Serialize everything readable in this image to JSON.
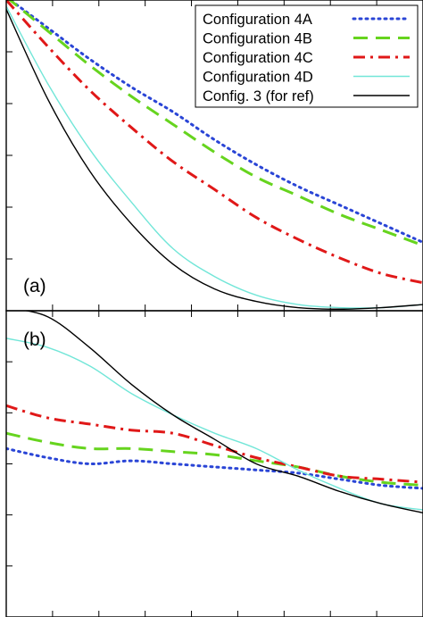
{
  "chart_data": [
    {
      "type": "line",
      "panel_label": "(a)",
      "xlim": [
        0,
        10
      ],
      "ylim": [
        0,
        1
      ],
      "grid": false,
      "legend": {
        "placement": "top-right",
        "entries": [
          "Configuration 4A",
          "Configuration 4B",
          "Configuration 4C",
          "Configuration 4D",
          "Config. 3 (for ref)"
        ]
      },
      "series": [
        {
          "name": "Configuration 4A",
          "color": "#2a45d6",
          "style": "dotted",
          "x": [
            0,
            1,
            2,
            3,
            4,
            5,
            6,
            7,
            8,
            9,
            10
          ],
          "y": [
            1.01,
            0.91,
            0.81,
            0.72,
            0.64,
            0.55,
            0.47,
            0.4,
            0.34,
            0.28,
            0.22
          ]
        },
        {
          "name": "Configuration 4B",
          "color": "#66d41e",
          "style": "dashed",
          "x": [
            0,
            1,
            2,
            3,
            4,
            5,
            6,
            7,
            8,
            9,
            10
          ],
          "y": [
            1.01,
            0.9,
            0.79,
            0.69,
            0.6,
            0.51,
            0.43,
            0.37,
            0.31,
            0.26,
            0.21
          ]
        },
        {
          "name": "Configuration 4C",
          "color": "#e01818",
          "style": "dash-dot",
          "x": [
            0,
            1,
            2,
            3,
            4,
            5,
            6,
            7,
            8,
            9,
            10
          ],
          "y": [
            1.0,
            0.85,
            0.71,
            0.59,
            0.48,
            0.39,
            0.3,
            0.23,
            0.17,
            0.12,
            0.09
          ]
        },
        {
          "name": "Configuration 4D",
          "color": "#72e6d8",
          "style": "solid",
          "x": [
            0,
            1,
            2,
            3,
            4,
            5,
            6,
            7,
            8,
            9,
            10
          ],
          "y": [
            0.98,
            0.73,
            0.52,
            0.35,
            0.2,
            0.11,
            0.05,
            0.02,
            0.01,
            0.01,
            0.02
          ]
        },
        {
          "name": "Config. 3 (for ref)",
          "color": "#000000",
          "style": "solid",
          "x": [
            0,
            1,
            2,
            3,
            4,
            5,
            6,
            7,
            8,
            9,
            10
          ],
          "y": [
            0.97,
            0.68,
            0.45,
            0.28,
            0.15,
            0.07,
            0.03,
            0.01,
            0.005,
            0.01,
            0.02
          ]
        }
      ]
    },
    {
      "type": "line",
      "panel_label": "(b)",
      "xlim": [
        0,
        10
      ],
      "ylim": [
        0,
        1
      ],
      "grid": false,
      "series": [
        {
          "name": "Configuration 4A",
          "color": "#2a45d6",
          "style": "dotted",
          "x": [
            0,
            1,
            2,
            3,
            4,
            5,
            6,
            7,
            8,
            9,
            10
          ],
          "y": [
            0.55,
            0.52,
            0.5,
            0.51,
            0.5,
            0.49,
            0.48,
            0.47,
            0.45,
            0.43,
            0.42
          ]
        },
        {
          "name": "Configuration 4B",
          "color": "#66d41e",
          "style": "dashed",
          "x": [
            0,
            1,
            2,
            3,
            4,
            5,
            6,
            7,
            8,
            9,
            10
          ],
          "y": [
            0.6,
            0.57,
            0.55,
            0.55,
            0.54,
            0.53,
            0.51,
            0.49,
            0.46,
            0.44,
            0.43
          ]
        },
        {
          "name": "Configuration 4C",
          "color": "#e01818",
          "style": "dash-dot",
          "x": [
            0,
            1,
            2,
            3,
            4,
            5,
            6,
            7,
            8,
            9,
            10
          ],
          "y": [
            0.69,
            0.65,
            0.63,
            0.61,
            0.6,
            0.56,
            0.52,
            0.49,
            0.46,
            0.45,
            0.44
          ]
        },
        {
          "name": "Configuration 4D",
          "color": "#72e6d8",
          "style": "solid",
          "x": [
            0,
            1,
            2,
            3,
            4,
            5,
            6,
            7,
            8,
            9,
            10
          ],
          "y": [
            0.91,
            0.88,
            0.82,
            0.73,
            0.66,
            0.6,
            0.55,
            0.48,
            0.42,
            0.37,
            0.35
          ]
        },
        {
          "name": "Config. 3 (for ref)",
          "color": "#000000",
          "style": "solid",
          "x": [
            0,
            1,
            2,
            3,
            4,
            5,
            6,
            7,
            8,
            9,
            10
          ],
          "y": [
            1.01,
            0.98,
            0.88,
            0.76,
            0.66,
            0.58,
            0.5,
            0.46,
            0.41,
            0.37,
            0.34
          ]
        }
      ]
    }
  ]
}
